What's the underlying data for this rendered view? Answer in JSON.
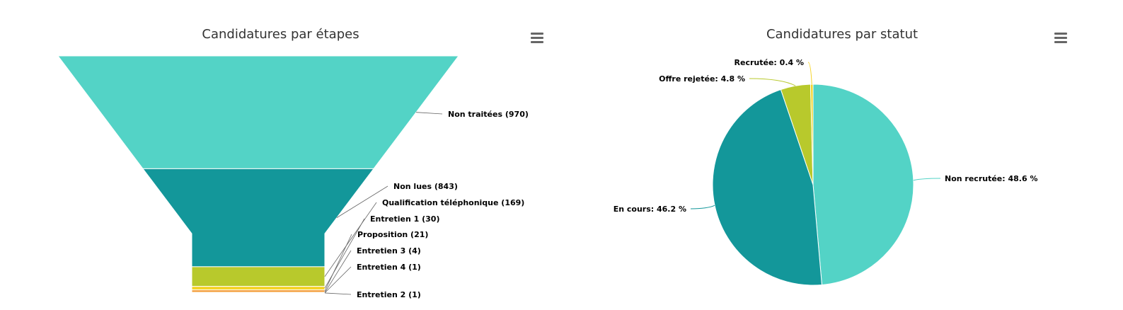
{
  "chart_data": [
    {
      "type": "funnel",
      "title": "Candidatures par étapes",
      "categories": [
        "Non traitées",
        "Non lues",
        "Qualification téléphonique",
        "Entretien 1",
        "Proposition",
        "Entretien 3",
        "Entretien 4",
        "Entretien 2"
      ],
      "values": [
        970,
        843,
        169,
        30,
        21,
        4,
        1,
        1
      ],
      "labels": [
        "Non traitées (970)",
        "Non lues (843)",
        "Qualification téléphonique (169)",
        "Entretien 1 (30)",
        "Proposition (21)",
        "Entretien 3 (4)",
        "Entretien 4 (1)",
        "Entretien 2 (1)"
      ],
      "colors": [
        "#53d3c6",
        "#13979a",
        "#b8c92c",
        "#f5d327",
        "#f39c34",
        "#e8643a",
        "#d94040",
        "#c13a3a"
      ]
    },
    {
      "type": "pie",
      "title": "Candidatures par statut",
      "categories": [
        "Non recrutée",
        "En cours",
        "Offre rejetée",
        "Recrutée"
      ],
      "values": [
        48.6,
        46.2,
        4.8,
        0.4
      ],
      "labels": [
        "Non recrutée: 48.6 %",
        "En cours: 46.2 %",
        "Offre rejetée: 4.8 %",
        "Recrutée: 0.4 %"
      ],
      "colors": [
        "#53d3c6",
        "#13979a",
        "#b8c92c",
        "#f5d327"
      ]
    }
  ]
}
